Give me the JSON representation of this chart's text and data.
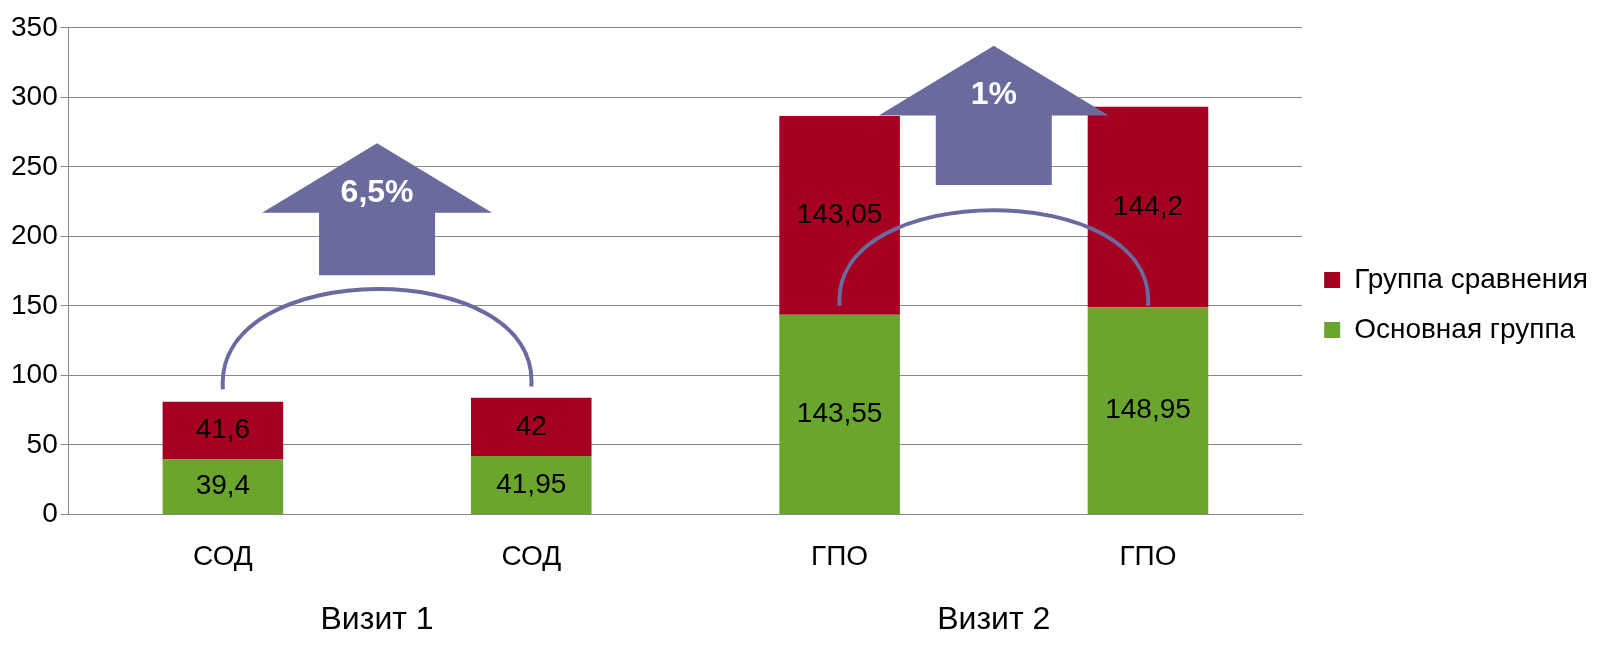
{
  "chart_data": {
    "type": "bar",
    "stacked": true,
    "categories": [
      "СОД",
      "СОД",
      "ГПО",
      "ГПО"
    ],
    "series": [
      {
        "name": "Основная группа",
        "color": "#6aa52e",
        "values": [
          39.4,
          41.95,
          143.55,
          148.95
        ],
        "value_labels": [
          "39,4",
          "41,95",
          "143,55",
          "148,95"
        ]
      },
      {
        "name": "Группа сравнения",
        "color": "#a50021",
        "values": [
          41.6,
          42,
          143.05,
          144.2
        ],
        "value_labels": [
          "41,6",
          "42",
          "143,05",
          "144,2"
        ]
      }
    ],
    "ylim": [
      0,
      350
    ],
    "yticks": [
      0,
      50,
      100,
      150,
      200,
      250,
      300,
      350
    ],
    "grid": "y",
    "legend": "right",
    "annotations": [
      "6,5%",
      "1%",
      "Визит 1",
      "Визит 2"
    ]
  }
}
